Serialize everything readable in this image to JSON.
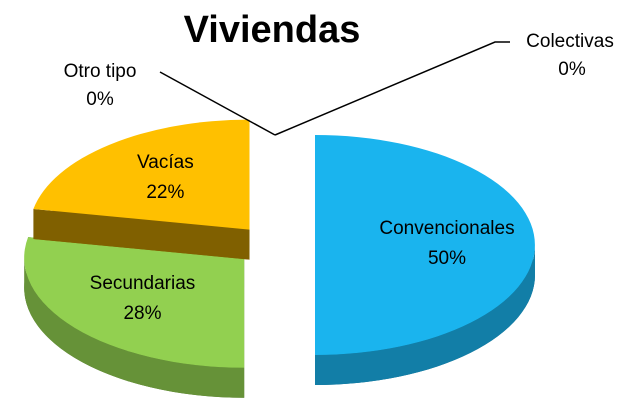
{
  "chart_data": {
    "type": "pie3d",
    "title": "Viviendas",
    "categories": [
      "Convencionales",
      "Secundarias",
      "Vacías",
      "Otro tipo",
      "Colectivas"
    ],
    "values": [
      50,
      28,
      22,
      0,
      0
    ],
    "value_labels": [
      "50%",
      "28%",
      "22%",
      "0%",
      "0%"
    ],
    "colors": [
      "#1ab4ee",
      "#92d050",
      "#ffc000",
      "#4f81bd",
      "#8064a2"
    ]
  }
}
